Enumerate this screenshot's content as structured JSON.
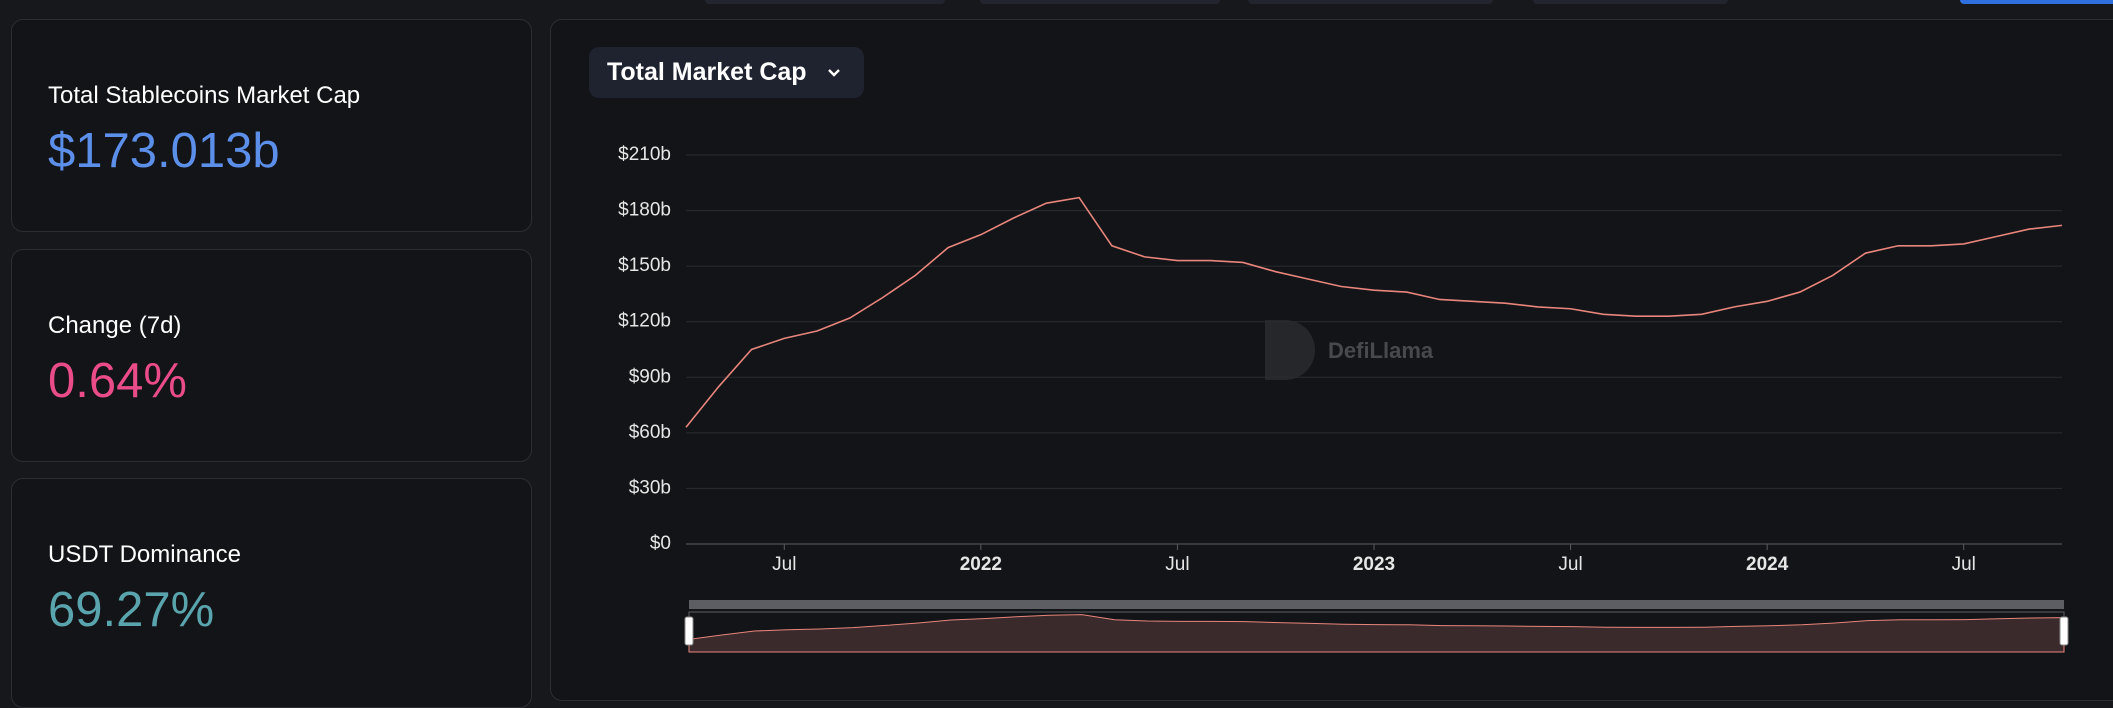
{
  "stats": [
    {
      "title": "Total Stablecoins Market Cap",
      "value": "$173.013b"
    },
    {
      "title": "Change (7d)",
      "value": "0.64%"
    },
    {
      "title": "USDT Dominance",
      "value": "69.27%"
    }
  ],
  "dropdown": "Total Market Cap",
  "watermark": "DefiLlama",
  "chart_data": {
    "type": "line",
    "x": [
      "2021-04",
      "2021-05",
      "2021-06",
      "2021-07",
      "2021-08",
      "2021-09",
      "2021-10",
      "2021-11",
      "2021-12",
      "2022-01",
      "2022-02",
      "2022-03",
      "2022-04",
      "2022-05",
      "2022-06",
      "2022-07",
      "2022-08",
      "2022-09",
      "2022-10",
      "2022-11",
      "2022-12",
      "2023-01",
      "2023-02",
      "2023-03",
      "2023-04",
      "2023-05",
      "2023-06",
      "2023-07",
      "2023-08",
      "2023-09",
      "2023-10",
      "2023-11",
      "2023-12",
      "2024-01",
      "2024-02",
      "2024-03",
      "2024-04",
      "2024-05",
      "2024-06",
      "2024-07",
      "2024-08",
      "2024-09",
      "2024-10"
    ],
    "values": [
      63,
      85,
      105,
      111,
      115,
      122,
      133,
      145,
      160,
      167,
      176,
      184,
      187,
      161,
      155,
      153,
      153,
      152,
      147,
      143,
      139,
      137,
      136,
      132,
      131,
      130,
      128,
      127,
      124,
      123,
      123,
      124,
      128,
      131,
      136,
      145,
      157,
      161,
      161,
      162,
      166,
      170,
      172
    ],
    "color": "#e8857c",
    "xlim": [
      "2021-04",
      "2024-10"
    ],
    "xticks": [
      {
        "value": "2021-07",
        "label": "Jul"
      },
      {
        "value": "2022-01",
        "label": "2022"
      },
      {
        "value": "2022-07",
        "label": "Jul"
      },
      {
        "value": "2023-01",
        "label": "2023"
      },
      {
        "value": "2023-07",
        "label": "Jul"
      },
      {
        "value": "2024-01",
        "label": "2024"
      },
      {
        "value": "2024-07",
        "label": "Jul"
      }
    ],
    "ylim": [
      0,
      210
    ],
    "yticks": [
      {
        "value": 0,
        "label": "$0"
      },
      {
        "value": 30,
        "label": "$30b"
      },
      {
        "value": 60,
        "label": "$60b"
      },
      {
        "value": 90,
        "label": "$90b"
      },
      {
        "value": 120,
        "label": "$120b"
      },
      {
        "value": 150,
        "label": "$150b"
      },
      {
        "value": 180,
        "label": "$180b"
      },
      {
        "value": 210,
        "label": "$210b"
      }
    ],
    "grid": true
  }
}
